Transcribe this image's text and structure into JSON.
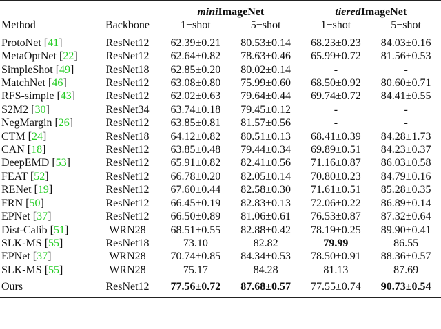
{
  "table": {
    "header": {
      "method": "Method",
      "backbone": "Backbone",
      "datasets": [
        {
          "prefix": "mini",
          "name": "ImageNet"
        },
        {
          "prefix": "tiered",
          "name": "ImageNet"
        }
      ],
      "shots": [
        "1−shot",
        "5−shot",
        "1−shot",
        "5−shot"
      ]
    },
    "rows": [
      {
        "method": "ProtoNet",
        "cite": "41",
        "backbone": "ResNet12",
        "mini_1": "62.39±0.21",
        "mini_5": "80.53±0.14",
        "tiered_1": "68.23±0.23",
        "tiered_5": "84.03±0.16"
      },
      {
        "method": "MetaOptNet",
        "cite": "22",
        "backbone": "ResNet12",
        "mini_1": "62.64±0.82",
        "mini_5": "78.63±0.46",
        "tiered_1": "65.99±0.72",
        "tiered_5": "81.56±0.53"
      },
      {
        "method": "SimpleShot",
        "cite": "49",
        "backbone": "ResNet18",
        "mini_1": "62.85±0.20",
        "mini_5": "80.02±0.14",
        "tiered_1": "-",
        "tiered_5": "-"
      },
      {
        "method": "MatchNet",
        "cite": "46",
        "backbone": "ResNet12",
        "mini_1": "63.08±0.80",
        "mini_5": "75.99±0.60",
        "tiered_1": "68.50±0.92",
        "tiered_5": "80.60±0.71"
      },
      {
        "method": "RFS-simple",
        "cite": "43",
        "backbone": "ResNet12",
        "mini_1": "62.02±0.63",
        "mini_5": "79.64±0.44",
        "tiered_1": "69.74±0.72",
        "tiered_5": "84.41±0.55"
      },
      {
        "method": "S2M2",
        "cite": "30",
        "backbone": "ResNet34",
        "mini_1": "63.74±0.18",
        "mini_5": "79.45±0.12",
        "tiered_1": "-",
        "tiered_5": "-"
      },
      {
        "method": "NegMargin",
        "cite": "26",
        "backbone": "ResNet12",
        "mini_1": "63.85±0.81",
        "mini_5": "81.57±0.56",
        "tiered_1": "-",
        "tiered_5": "-"
      },
      {
        "method": "CTM",
        "cite": "24",
        "backbone": "ResNet18",
        "mini_1": "64.12±0.82",
        "mini_5": "80.51±0.13",
        "tiered_1": "68.41±0.39",
        "tiered_5": "84.28±1.73"
      },
      {
        "method": "CAN",
        "cite": "18",
        "backbone": "ResNet12",
        "mini_1": "63.85±0.48",
        "mini_5": "79.44±0.34",
        "tiered_1": "69.89±0.51",
        "tiered_5": "84.23±0.37"
      },
      {
        "method": "DeepEMD",
        "cite": "53",
        "backbone": "ResNet12",
        "mini_1": "65.91±0.82",
        "mini_5": "82.41±0.56",
        "tiered_1": "71.16±0.87",
        "tiered_5": "86.03±0.58"
      },
      {
        "method": "FEAT",
        "cite": "52",
        "backbone": "ResNet12",
        "mini_1": "66.78±0.20",
        "mini_5": "82.05±0.14",
        "tiered_1": "70.80±0.23",
        "tiered_5": "84.79±0.16"
      },
      {
        "method": "RENet",
        "cite": "19",
        "backbone": "ResNet12",
        "mini_1": "67.60±0.44",
        "mini_5": "82.58±0.30",
        "tiered_1": "71.61±0.51",
        "tiered_5": "85.28±0.35"
      },
      {
        "method": "FRN",
        "cite": "50",
        "backbone": "ResNet12",
        "mini_1": "66.45±0.19",
        "mini_5": "82.83±0.13",
        "tiered_1": "72.06±0.22",
        "tiered_5": "86.89±0.14"
      },
      {
        "method": "EPNet",
        "cite": "37",
        "backbone": "ResNet12",
        "mini_1": "66.50±0.89",
        "mini_5": "81.06±0.61",
        "tiered_1": "76.53±0.87",
        "tiered_5": "87.32±0.64"
      },
      {
        "method": "Dist-Calib",
        "cite": "51",
        "backbone": "WRN28",
        "mini_1": "68.51±0.55",
        "mini_5": "82.88±0.42",
        "tiered_1": "78.19±0.25",
        "tiered_5": "89.90±0.41"
      },
      {
        "method": "SLK-MS",
        "cite": "55",
        "backbone": "ResNet18",
        "mini_1": "73.10",
        "mini_5": "82.82",
        "tiered_1": "79.99",
        "tiered_5": "86.55",
        "bold": [
          "tiered_1"
        ]
      },
      {
        "method": "EPNet",
        "cite": "37",
        "backbone": "WRN28",
        "mini_1": "70.74±0.85",
        "mini_5": "84.34±0.53",
        "tiered_1": "78.50±0.91",
        "tiered_5": "88.36±0.57"
      },
      {
        "method": "SLK-MS",
        "cite": "55",
        "backbone": "WRN28",
        "mini_1": "75.17",
        "mini_5": "84.28",
        "tiered_1": "81.13",
        "tiered_5": "87.69"
      }
    ],
    "ours": {
      "method": "Ours",
      "backbone": "ResNet12",
      "mini_1": "77.56±0.72",
      "mini_5": "87.68±0.57",
      "tiered_1": "77.55±0.74",
      "tiered_5": "90.73±0.54",
      "bold": [
        "mini_1",
        "mini_5",
        "tiered_5"
      ]
    },
    "colors": {
      "citation": "#22cc22",
      "text": "#111111",
      "rule": "#222222"
    }
  }
}
